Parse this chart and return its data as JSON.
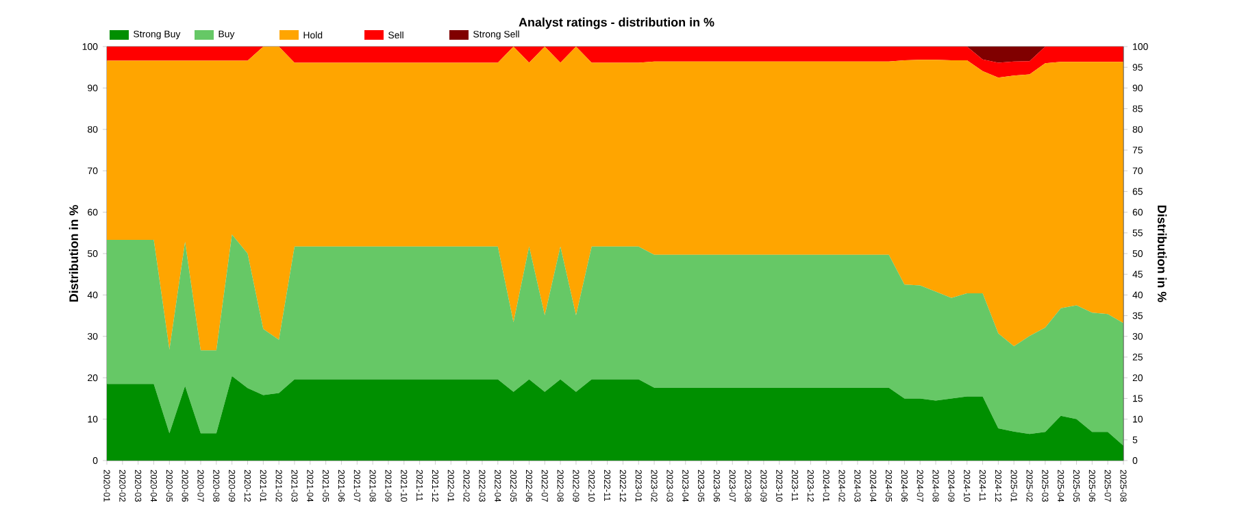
{
  "chart_data": {
    "type": "area",
    "stacked": true,
    "title": "Analyst ratings - distribution in %",
    "ylabel": "Distribution in %",
    "y2label": "Distribution in %",
    "categories": [
      "2020-01",
      "2020-02",
      "2020-03",
      "2020-04",
      "2020-05",
      "2020-06",
      "2020-07",
      "2020-08",
      "2020-09",
      "2020-12",
      "2021-01",
      "2021-02",
      "2021-03",
      "2021-04",
      "2021-05",
      "2021-06",
      "2021-07",
      "2021-08",
      "2021-09",
      "2021-10",
      "2021-11",
      "2021-12",
      "2022-01",
      "2022-02",
      "2022-03",
      "2022-04",
      "2022-05",
      "2022-06",
      "2022-07",
      "2022-08",
      "2022-09",
      "2022-10",
      "2022-11",
      "2022-12",
      "2023-01",
      "2023-02",
      "2023-03",
      "2023-04",
      "2023-05",
      "2023-06",
      "2023-07",
      "2023-08",
      "2023-09",
      "2023-10",
      "2023-11",
      "2023-12",
      "2024-01",
      "2024-02",
      "2024-03",
      "2024-04",
      "2024-05",
      "2024-06",
      "2024-07",
      "2024-08",
      "2024-09",
      "2024-10",
      "2024-11",
      "2024-12",
      "2025-01",
      "2025-02",
      "2025-03",
      "2025-04",
      "2025-05",
      "2025-06",
      "2025-07",
      "2025-08"
    ],
    "series": [
      {
        "name": "Strong Buy",
        "color": "#008f00",
        "values": [
          18.5,
          18.5,
          18.5,
          18.5,
          6.6,
          18.0,
          6.6,
          6.6,
          20.4,
          17.5,
          15.8,
          16.3,
          19.6,
          19.6,
          19.6,
          19.6,
          19.6,
          19.6,
          19.6,
          19.6,
          19.6,
          19.6,
          19.6,
          19.6,
          19.6,
          19.6,
          16.6,
          19.6,
          16.6,
          19.6,
          16.6,
          19.6,
          19.6,
          19.6,
          19.6,
          17.6,
          17.6,
          17.6,
          17.6,
          17.6,
          17.6,
          17.6,
          17.6,
          17.6,
          17.6,
          17.6,
          17.6,
          17.6,
          17.6,
          17.6,
          17.6,
          15.0,
          15.0,
          14.5,
          15.0,
          15.5,
          15.5,
          7.8,
          7.0,
          6.4,
          6.9,
          10.8,
          10.0,
          6.9,
          6.9,
          3.6
        ]
      },
      {
        "name": "Buy",
        "color": "#66c866",
        "values": [
          34.8,
          34.8,
          34.8,
          34.8,
          20.2,
          34.8,
          20.0,
          20.0,
          34.2,
          32.5,
          16.0,
          12.9,
          32.1,
          32.1,
          32.1,
          32.1,
          32.1,
          32.1,
          32.1,
          32.1,
          32.1,
          32.1,
          32.1,
          32.1,
          32.1,
          32.1,
          16.8,
          32.1,
          18.5,
          32.1,
          18.5,
          32.1,
          32.1,
          32.1,
          32.1,
          32.1,
          32.1,
          32.1,
          32.1,
          32.1,
          32.1,
          32.1,
          32.1,
          32.1,
          32.1,
          32.1,
          32.1,
          32.1,
          32.1,
          32.1,
          32.1,
          27.5,
          27.3,
          26.3,
          24.3,
          24.9,
          24.9,
          22.9,
          20.6,
          23.7,
          25.2,
          26.0,
          27.5,
          28.8,
          28.5,
          29.6
        ]
      },
      {
        "name": "Hold",
        "color": "#ffa500",
        "values": [
          43.3,
          43.3,
          43.3,
          43.3,
          69.8,
          43.8,
          70.0,
          70.0,
          42.0,
          46.6,
          68.2,
          70.8,
          44.4,
          44.4,
          44.4,
          44.4,
          44.4,
          44.4,
          44.4,
          44.4,
          44.4,
          44.4,
          44.4,
          44.4,
          44.4,
          44.4,
          66.6,
          44.4,
          64.9,
          44.4,
          64.9,
          44.4,
          44.4,
          44.4,
          44.4,
          46.7,
          46.7,
          46.7,
          46.7,
          46.7,
          46.7,
          46.7,
          46.7,
          46.7,
          46.7,
          46.7,
          46.7,
          46.7,
          46.7,
          46.7,
          46.7,
          54.2,
          54.5,
          56.0,
          57.4,
          56.3,
          53.7,
          61.8,
          65.4,
          63.2,
          63.9,
          59.5,
          58.8,
          60.6,
          60.9,
          63.1
        ]
      },
      {
        "name": "Sell",
        "color": "#ff0000",
        "values": [
          3.4,
          3.4,
          3.4,
          3.4,
          3.4,
          3.4,
          3.4,
          3.4,
          3.4,
          3.4,
          0,
          0,
          3.9,
          3.9,
          3.9,
          3.9,
          3.9,
          3.9,
          3.9,
          3.9,
          3.9,
          3.9,
          3.9,
          3.9,
          3.9,
          3.9,
          0,
          3.9,
          0,
          3.9,
          0,
          3.9,
          3.9,
          3.9,
          3.9,
          3.6,
          3.6,
          3.6,
          3.6,
          3.6,
          3.6,
          3.6,
          3.6,
          3.6,
          3.6,
          3.6,
          3.6,
          3.6,
          3.6,
          3.6,
          3.6,
          3.3,
          3.2,
          3.2,
          3.3,
          3.3,
          2.8,
          3.6,
          3.4,
          3.2,
          4.0,
          3.7,
          3.7,
          3.7,
          3.7,
          3.7
        ]
      },
      {
        "name": "Strong Sell",
        "color": "#800000",
        "values": [
          0,
          0,
          0,
          0,
          0,
          0,
          0,
          0,
          0,
          0,
          0,
          0,
          0,
          0,
          0,
          0,
          0,
          0,
          0,
          0,
          0,
          0,
          0,
          0,
          0,
          0,
          0,
          0,
          0,
          0,
          0,
          0,
          0,
          0,
          0,
          0,
          0,
          0,
          0,
          0,
          0,
          0,
          0,
          0,
          0,
          0,
          0,
          0,
          0,
          0,
          0,
          0,
          0,
          0,
          0,
          0,
          3.1,
          3.9,
          3.6,
          3.5,
          0,
          0,
          0,
          0,
          0,
          0
        ]
      }
    ],
    "ylim": [
      0,
      100
    ],
    "yticks": [
      0,
      10,
      20,
      30,
      40,
      50,
      60,
      70,
      80,
      90,
      100
    ],
    "y2lim": [
      0,
      100
    ],
    "y2ticks": [
      0,
      5,
      10,
      15,
      20,
      25,
      30,
      35,
      40,
      45,
      50,
      55,
      60,
      65,
      70,
      75,
      80,
      85,
      90,
      95,
      100
    ],
    "grid": "y",
    "legend": "top left"
  }
}
